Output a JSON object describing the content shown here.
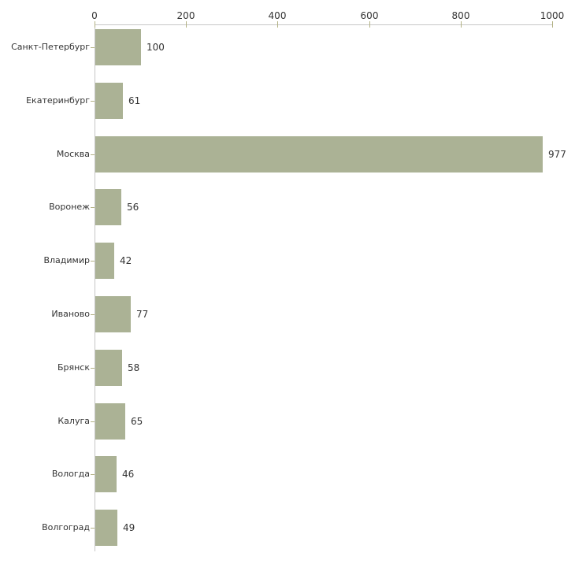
{
  "chart_data": {
    "type": "bar",
    "orientation": "horizontal",
    "title": "",
    "xlabel": "",
    "ylabel": "",
    "categories": [
      "Санкт-Петербург",
      "Екатеринбург",
      "Москва",
      "Воронеж",
      "Владимир",
      "Иваново",
      "Брянск",
      "Калуга",
      "Вологда",
      "Волгоград"
    ],
    "values": [
      100,
      61,
      977,
      56,
      42,
      77,
      58,
      65,
      46,
      49
    ],
    "value_labels": [
      "100",
      "61",
      "977",
      "56",
      "42",
      "77",
      "58",
      "65",
      "46",
      "49"
    ],
    "x_ticks": [
      0,
      200,
      400,
      600,
      800,
      1000
    ],
    "x_tick_labels": [
      "0",
      "200",
      "400",
      "600",
      "800",
      "1000"
    ],
    "xlim": [
      0,
      1000
    ],
    "x_axis_position": "top",
    "grid": false,
    "legend": false,
    "colors": {
      "bar": "#abb295",
      "axis_line": "#c6c6c6",
      "tick_mark": "#b2b183",
      "text": "#333333",
      "background": "#ffffff"
    }
  }
}
